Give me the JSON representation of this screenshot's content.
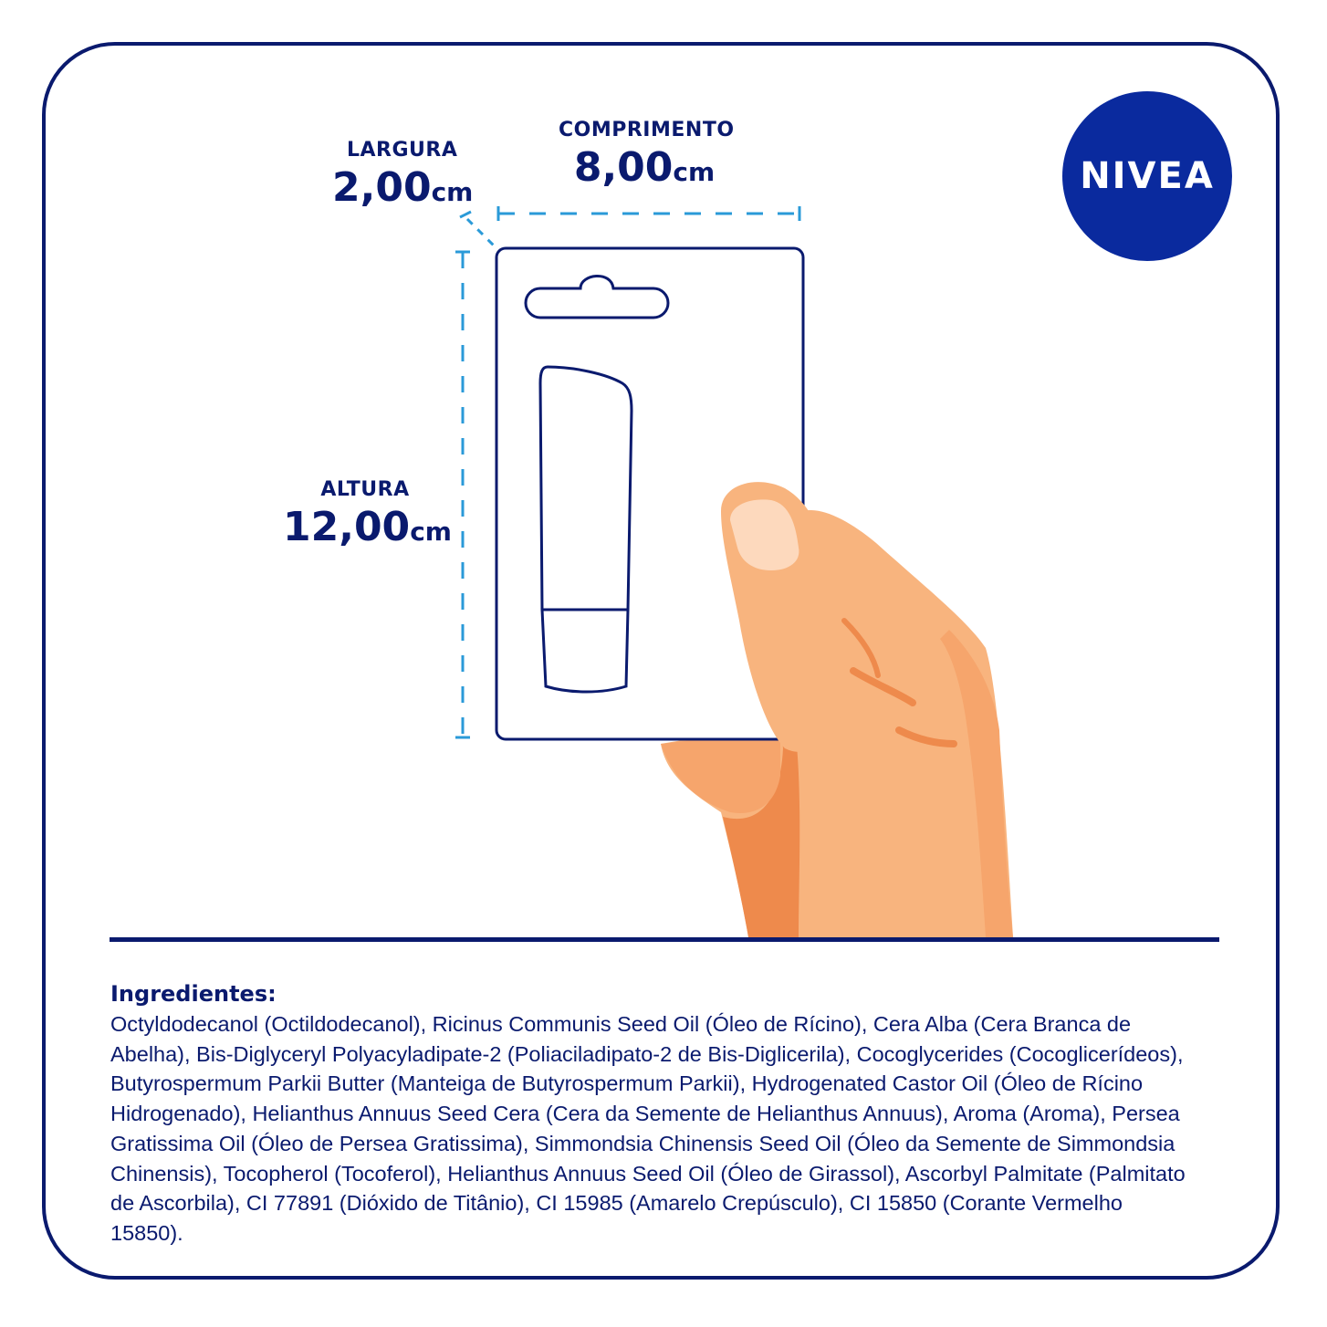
{
  "dimensions": {
    "width": {
      "label": "LARGURA",
      "value": "2,00",
      "unit": "cm"
    },
    "length": {
      "label": "COMPRIMENTO",
      "value": "8,00",
      "unit": "cm"
    },
    "height": {
      "label": "ALTURA",
      "value": "12,00",
      "unit": "cm"
    }
  },
  "brand": {
    "logo_text": "NIVEA",
    "logo_color": "#0a2a9e"
  },
  "ingredients": {
    "title": "Ingredientes:",
    "text": "Octyldodecanol (Octildodecanol), Ricinus Communis Seed Oil (Óleo de Rícino), Cera Alba (Cera Branca de Abelha), Bis-Diglyceryl Polyacyladipate-2 (Poliaciladipato-2 de Bis-Diglicerila), Cocoglycerides (Cocoglicerídeos), Butyrospermum Parkii Butter (Manteiga de Butyrospermum Parkii), Hydrogenated Castor Oil (Óleo de Rícino Hidrogenado), Helianthus Annuus Seed Cera (Cera da Semente de Helianthus Annuus), Aroma (Aroma), Persea Gratissima Oil (Óleo de Persea Gratissima), Simmondsia Chinensis Seed Oil (Óleo da Semente de Simmondsia Chinensis), Tocopherol (Tocoferol), Helianthus Annuus Seed Oil (Óleo de Girassol), Ascorbyl Palmitate (Palmitato de Ascorbila), CI 77891 (Dióxido de Titânio), CI 15985 (Amarelo Crepúsculo), CI 15850 (Corante Vermelho 15850)."
  },
  "colors": {
    "navy": "#0a1a6e",
    "dashed_line": "#2a9ad8",
    "skin": "#f8b47e",
    "skin_shadow": "#ee8a4c",
    "nail": "#fdd9bd"
  }
}
